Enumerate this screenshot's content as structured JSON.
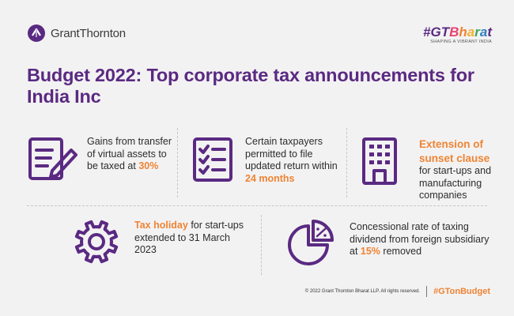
{
  "brand": {
    "name": "GrantThornton",
    "accent": "#5a2a82",
    "highlight": "#ee8433"
  },
  "campaign": {
    "hashtag": "#GTBharat",
    "tagline": "SHAPING A VIBRANT INDIA"
  },
  "headline": "Budget 2022: Top corporate tax announcements for India Inc",
  "cards": [
    {
      "icon": "document-pen-icon",
      "text_before": "Gains from transfer of virtual assets to be taxed at ",
      "highlight": "30%",
      "text_after": ""
    },
    {
      "icon": "checklist-icon",
      "text_before": "Certain taxpayers permitted to file updated return within ",
      "highlight": "24 months",
      "text_after": ""
    },
    {
      "icon": "building-icon",
      "text_before": "",
      "highlight": "Extension of sunset clause",
      "text_after": " for start-ups and manufacturing companies"
    },
    {
      "icon": "gear-icon",
      "text_before": "",
      "highlight": "Tax holiday",
      "text_after": " for start-ups extended to 31 March 2023"
    },
    {
      "icon": "pie-percent-icon",
      "text_before": "Concessional rate of taxing dividend from foreign subsidiary at ",
      "highlight": "15%",
      "text_after": " removed"
    }
  ],
  "footer": {
    "copyright": "© 2022 Grant Thornton Bharat LLP.  All rights reserved.",
    "hashtag": "#GTonBudget"
  }
}
